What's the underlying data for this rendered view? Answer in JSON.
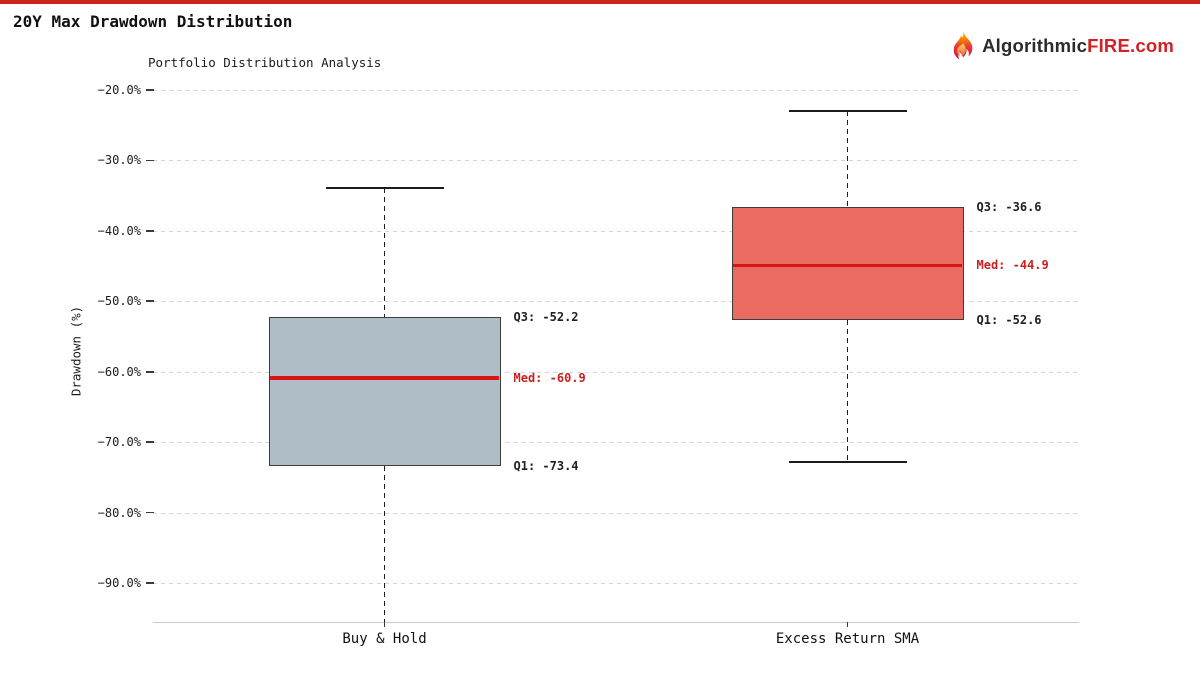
{
  "page": {
    "top_bar_color": "#cb2418",
    "background_color": "#ffffff"
  },
  "header": {
    "title": "20Y Max Drawdown Distribution"
  },
  "brand": {
    "name_dark": "Algorithmic",
    "name_accent": "FIRE",
    "name_suffix": ".com",
    "dark_color": "#2b2b2b",
    "accent_color": "#d32026",
    "flame_icon": "flame-icon"
  },
  "chart_data": {
    "type": "box",
    "title": "Portfolio Distribution Analysis",
    "ylabel": "Drawdown (%)",
    "xlabel": "",
    "grid": true,
    "legend": false,
    "ylim": [
      -97,
      -15
    ],
    "y_ticks": [
      {
        "label": "−20.0%",
        "value": -20
      },
      {
        "label": "−30.0%",
        "value": -30
      },
      {
        "label": "−40.0%",
        "value": -40
      },
      {
        "label": "−50.0%",
        "value": -50
      },
      {
        "label": "−60.0%",
        "value": -60
      },
      {
        "label": "−70.0%",
        "value": -70
      },
      {
        "label": "−80.0%",
        "value": -80
      },
      {
        "label": "−90.0%",
        "value": -90
      }
    ],
    "categories": [
      "Buy & Hold",
      "Excess Return SMA"
    ],
    "median_color": "#da1414",
    "median_label_color": "#cc1f1f",
    "series": [
      {
        "category": "Buy & Hold",
        "q3": -52.2,
        "median": -60.9,
        "q1": -73.4,
        "whisker_high": -33.9,
        "whisker_low": -96.4,
        "whisker_low_capped": false,
        "box_color": "#aebdc6",
        "labels": {
          "q3": "Q3: -52.2",
          "med": "Med: -60.9",
          "q1": "Q1: -73.4"
        }
      },
      {
        "category": "Excess Return SMA",
        "q3": -36.6,
        "median": -44.9,
        "q1": -52.6,
        "whisker_high": -23.0,
        "whisker_low": -72.8,
        "whisker_low_capped": true,
        "box_color": "#e96b61",
        "labels": {
          "q3": "Q3: -36.6",
          "med": "Med: -44.9",
          "q1": "Q1: -52.6"
        }
      }
    ]
  }
}
